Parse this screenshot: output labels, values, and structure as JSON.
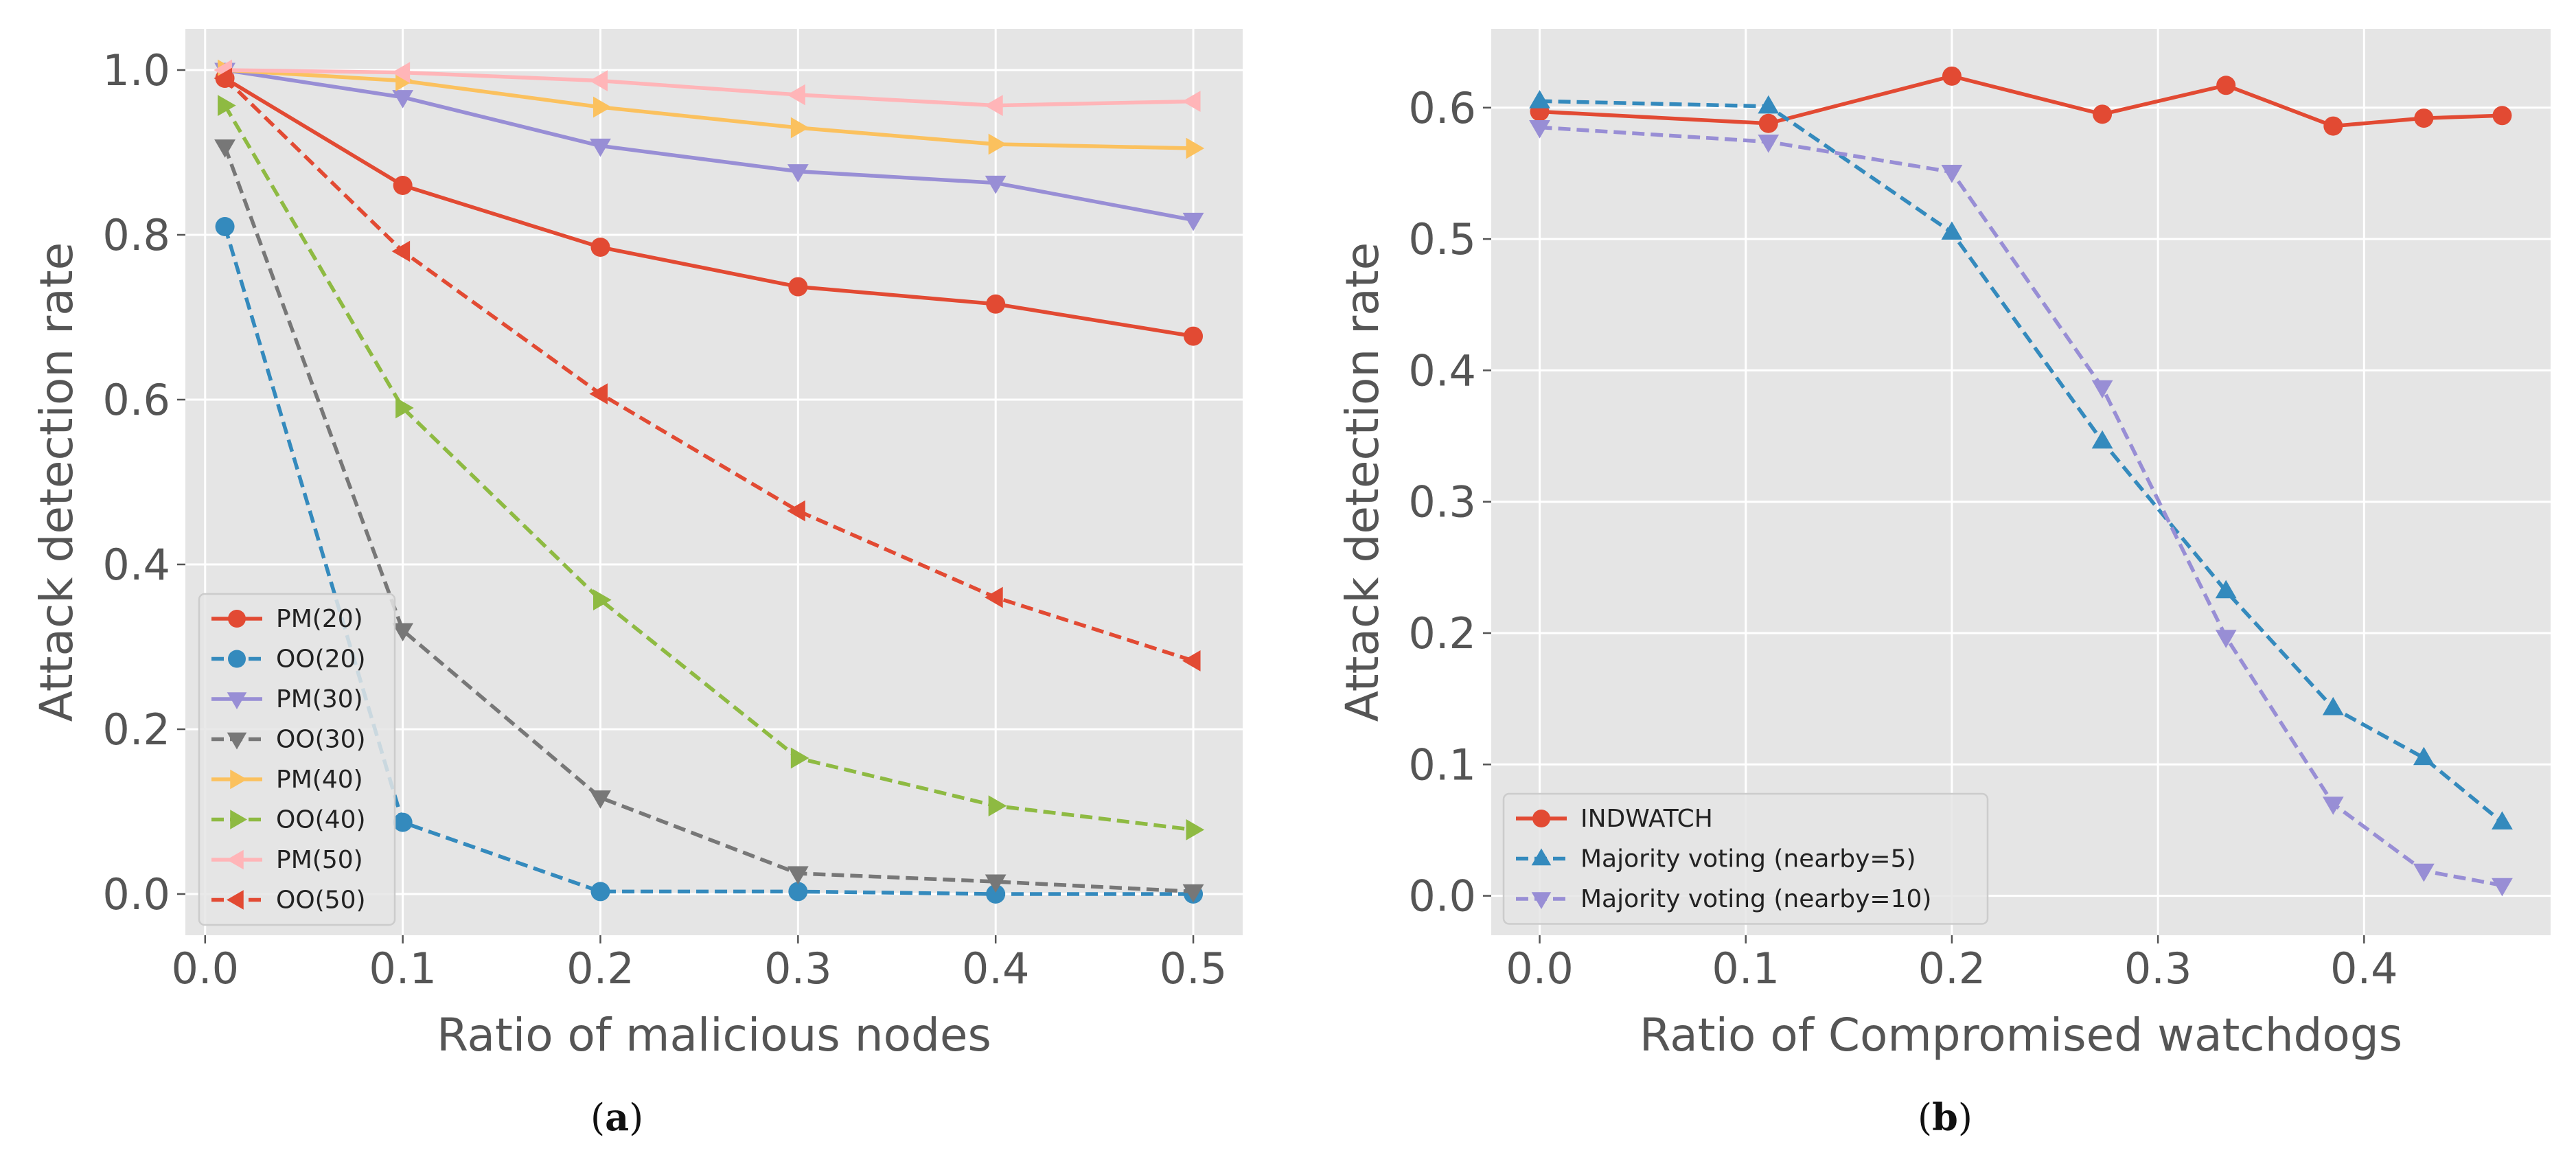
{
  "colors": {
    "red": "#E24A33",
    "blue": "#348ABD",
    "purple": "#988ED5",
    "gray": "#777777",
    "orange": "#FBC15E",
    "green": "#8EBA42",
    "pink": "#FFB5B8",
    "plot_bg": "#E5E5E5",
    "grid": "#FFFFFF",
    "text": "#555555"
  },
  "captions": {
    "a": "a",
    "b": "b"
  },
  "chart_data": [
    {
      "id": "a",
      "type": "line",
      "title": "",
      "xlabel": "Ratio of malicious nodes",
      "ylabel": "Attack detection rate",
      "xlim": [
        -0.01,
        0.525
      ],
      "ylim": [
        -0.05,
        1.05
      ],
      "xticks": [
        0.0,
        0.1,
        0.2,
        0.3,
        0.4,
        0.5
      ],
      "xtick_labels": [
        "0.0",
        "0.1",
        "0.2",
        "0.3",
        "0.4",
        "0.5"
      ],
      "yticks": [
        0.0,
        0.2,
        0.4,
        0.6,
        0.8,
        1.0
      ],
      "ytick_labels": [
        "0.0",
        "0.2",
        "0.4",
        "0.6",
        "0.8",
        "1.0"
      ],
      "grid": true,
      "legend_position": "lower-left",
      "x": [
        0.01,
        0.1,
        0.2,
        0.3,
        0.4,
        0.5
      ],
      "series": [
        {
          "name": "PM(20)",
          "color": "red",
          "dash": "solid",
          "marker": "circle",
          "values": [
            0.99,
            0.86,
            0.785,
            0.737,
            0.716,
            0.677
          ]
        },
        {
          "name": "OO(20)",
          "color": "blue",
          "dash": "dashed",
          "marker": "circle",
          "values": [
            0.81,
            0.087,
            0.003,
            0.003,
            0.0,
            0.0
          ]
        },
        {
          "name": "PM(30)",
          "color": "purple",
          "dash": "solid",
          "marker": "triangle-down",
          "values": [
            1.0,
            0.967,
            0.908,
            0.877,
            0.863,
            0.818
          ]
        },
        {
          "name": "OO(30)",
          "color": "gray",
          "dash": "dashed",
          "marker": "triangle-down",
          "values": [
            0.907,
            0.32,
            0.117,
            0.025,
            0.015,
            0.003
          ]
        },
        {
          "name": "PM(40)",
          "color": "orange",
          "dash": "solid",
          "marker": "triangle-right",
          "values": [
            1.0,
            0.987,
            0.955,
            0.93,
            0.91,
            0.905
          ]
        },
        {
          "name": "OO(40)",
          "color": "green",
          "dash": "dashed",
          "marker": "triangle-right",
          "values": [
            0.957,
            0.59,
            0.357,
            0.165,
            0.107,
            0.078
          ]
        },
        {
          "name": "PM(50)",
          "color": "pink",
          "dash": "solid",
          "marker": "triangle-left",
          "values": [
            1.0,
            0.997,
            0.987,
            0.97,
            0.957,
            0.962
          ]
        },
        {
          "name": "OO(50)",
          "color": "red",
          "dash": "dashed",
          "marker": "triangle-left",
          "values": [
            0.99,
            0.78,
            0.607,
            0.465,
            0.36,
            0.283
          ]
        }
      ]
    },
    {
      "id": "b",
      "type": "line",
      "title": "",
      "xlabel": "Ratio of Compromised watchdogs",
      "ylabel": "Attack detection rate",
      "xlim": [
        -0.0235,
        0.4905
      ],
      "ylim": [
        -0.03,
        0.66
      ],
      "xticks": [
        0.0,
        0.1,
        0.2,
        0.3,
        0.4
      ],
      "xtick_labels": [
        "0.0",
        "0.1",
        "0.2",
        "0.3",
        "0.4"
      ],
      "yticks": [
        0.0,
        0.1,
        0.2,
        0.3,
        0.4,
        0.5,
        0.6
      ],
      "ytick_labels": [
        "0.0",
        "0.1",
        "0.2",
        "0.3",
        "0.4",
        "0.5",
        "0.6"
      ],
      "grid": true,
      "legend_position": "lower-left",
      "x": [
        0.0,
        0.111,
        0.2,
        0.273,
        0.333,
        0.385,
        0.429,
        0.467
      ],
      "series": [
        {
          "name": "INDWATCH",
          "color": "red",
          "dash": "solid",
          "marker": "circle",
          "values": [
            0.597,
            0.588,
            0.624,
            0.595,
            0.617,
            0.586,
            0.592,
            0.594
          ]
        },
        {
          "name": "Majority voting (nearby=5)",
          "color": "blue",
          "dash": "dashed",
          "marker": "triangle-up",
          "values": [
            0.605,
            0.601,
            0.505,
            0.346,
            0.232,
            0.143,
            0.105,
            0.056
          ]
        },
        {
          "name": "Majority voting (nearby=10)",
          "color": "purple",
          "dash": "dashed",
          "marker": "triangle-down",
          "values": [
            0.585,
            0.574,
            0.551,
            0.387,
            0.197,
            0.07,
            0.019,
            0.008
          ]
        }
      ]
    }
  ]
}
